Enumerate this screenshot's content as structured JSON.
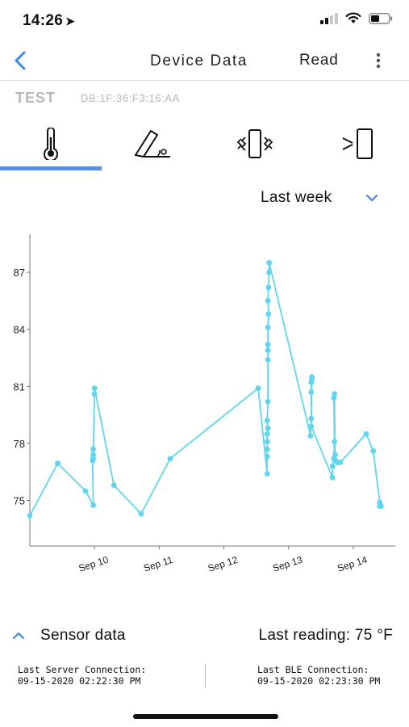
{
  "status_bar": {
    "time": "14:26",
    "location_icon": "location-arrow-icon",
    "signal_icon": "cellular-signal-icon",
    "wifi_icon": "wifi-icon",
    "battery_icon": "battery-icon"
  },
  "nav": {
    "back_icon": "chevron-left-icon",
    "title": "Device Data",
    "read_label": "Read",
    "menu_icon": "more-vertical-icon"
  },
  "device": {
    "name": "TEST",
    "mac": "DB:1F:36:F3:16:AA"
  },
  "tabs": [
    {
      "icon": "thermometer-icon",
      "selected": true
    },
    {
      "icon": "tilt-icon",
      "selected": false
    },
    {
      "icon": "vibration-icon",
      "selected": false
    },
    {
      "icon": "proximity-icon",
      "selected": false
    }
  ],
  "range": {
    "label": "Last week",
    "chevron_icon": "chevron-down-icon"
  },
  "colors": {
    "accent": "#5b8fd9",
    "line": "#5fd6ee",
    "muted": "#b8b8b8"
  },
  "chart_data": {
    "type": "line",
    "x_tick_labels": [
      "Sep 10",
      "Sep 11",
      "Sep 12",
      "Sep 13",
      "Sep 14"
    ],
    "x_ticks": [
      10,
      11,
      12,
      13,
      14
    ],
    "y_ticks": [
      75,
      78,
      81,
      84,
      87
    ],
    "xlim": [
      9.0,
      14.65
    ],
    "ylim": [
      72.6,
      89.0
    ],
    "grid": false,
    "series": [
      {
        "x": [
          9.0,
          9.43,
          9.86,
          9.98,
          9.97,
          9.98,
          9.98,
          9.98,
          10.0,
          10.0,
          10.3,
          10.72,
          11.17,
          12.53,
          12.67,
          12.67,
          12.67,
          12.67,
          12.67,
          12.68,
          12.67,
          12.68,
          12.68,
          12.68,
          12.68,
          12.68,
          12.69,
          12.68,
          12.69,
          12.7,
          12.7,
          13.34,
          13.35,
          13.35,
          13.35,
          13.36,
          13.36,
          13.35,
          13.68,
          13.68,
          13.7,
          13.71,
          13.7,
          13.71,
          13.72,
          13.73,
          13.75,
          13.8,
          14.2,
          14.31,
          14.41,
          14.41,
          14.43
        ],
        "y": [
          74.2,
          76.95,
          75.5,
          74.75,
          77.1,
          77.2,
          77.4,
          77.7,
          80.6,
          80.9,
          75.8,
          74.3,
          77.2,
          80.9,
          76.4,
          77.3,
          77.7,
          78.1,
          78.5,
          78.8,
          79.2,
          80.2,
          82.4,
          82.9,
          83.2,
          84.1,
          84.8,
          85.5,
          86.2,
          87.0,
          87.5,
          78.4,
          79.3,
          80.7,
          81.2,
          81.4,
          81.5,
          78.9,
          76.2,
          76.8,
          77.2,
          78.1,
          80.4,
          80.6,
          77.4,
          77.1,
          77.0,
          77.0,
          78.5,
          77.6,
          74.9,
          74.7,
          74.7
        ]
      }
    ]
  },
  "sensor": {
    "chevron_icon": "chevron-up-icon",
    "title": "Sensor data",
    "last_reading": "Last reading: 75 °F"
  },
  "connections": {
    "server_label": "Last Server Connection:",
    "server_value": "09-15-2020 02:22:30 PM",
    "ble_label": "Last BLE Connection:",
    "ble_value": "09-15-2020 02:23:30 PM"
  }
}
